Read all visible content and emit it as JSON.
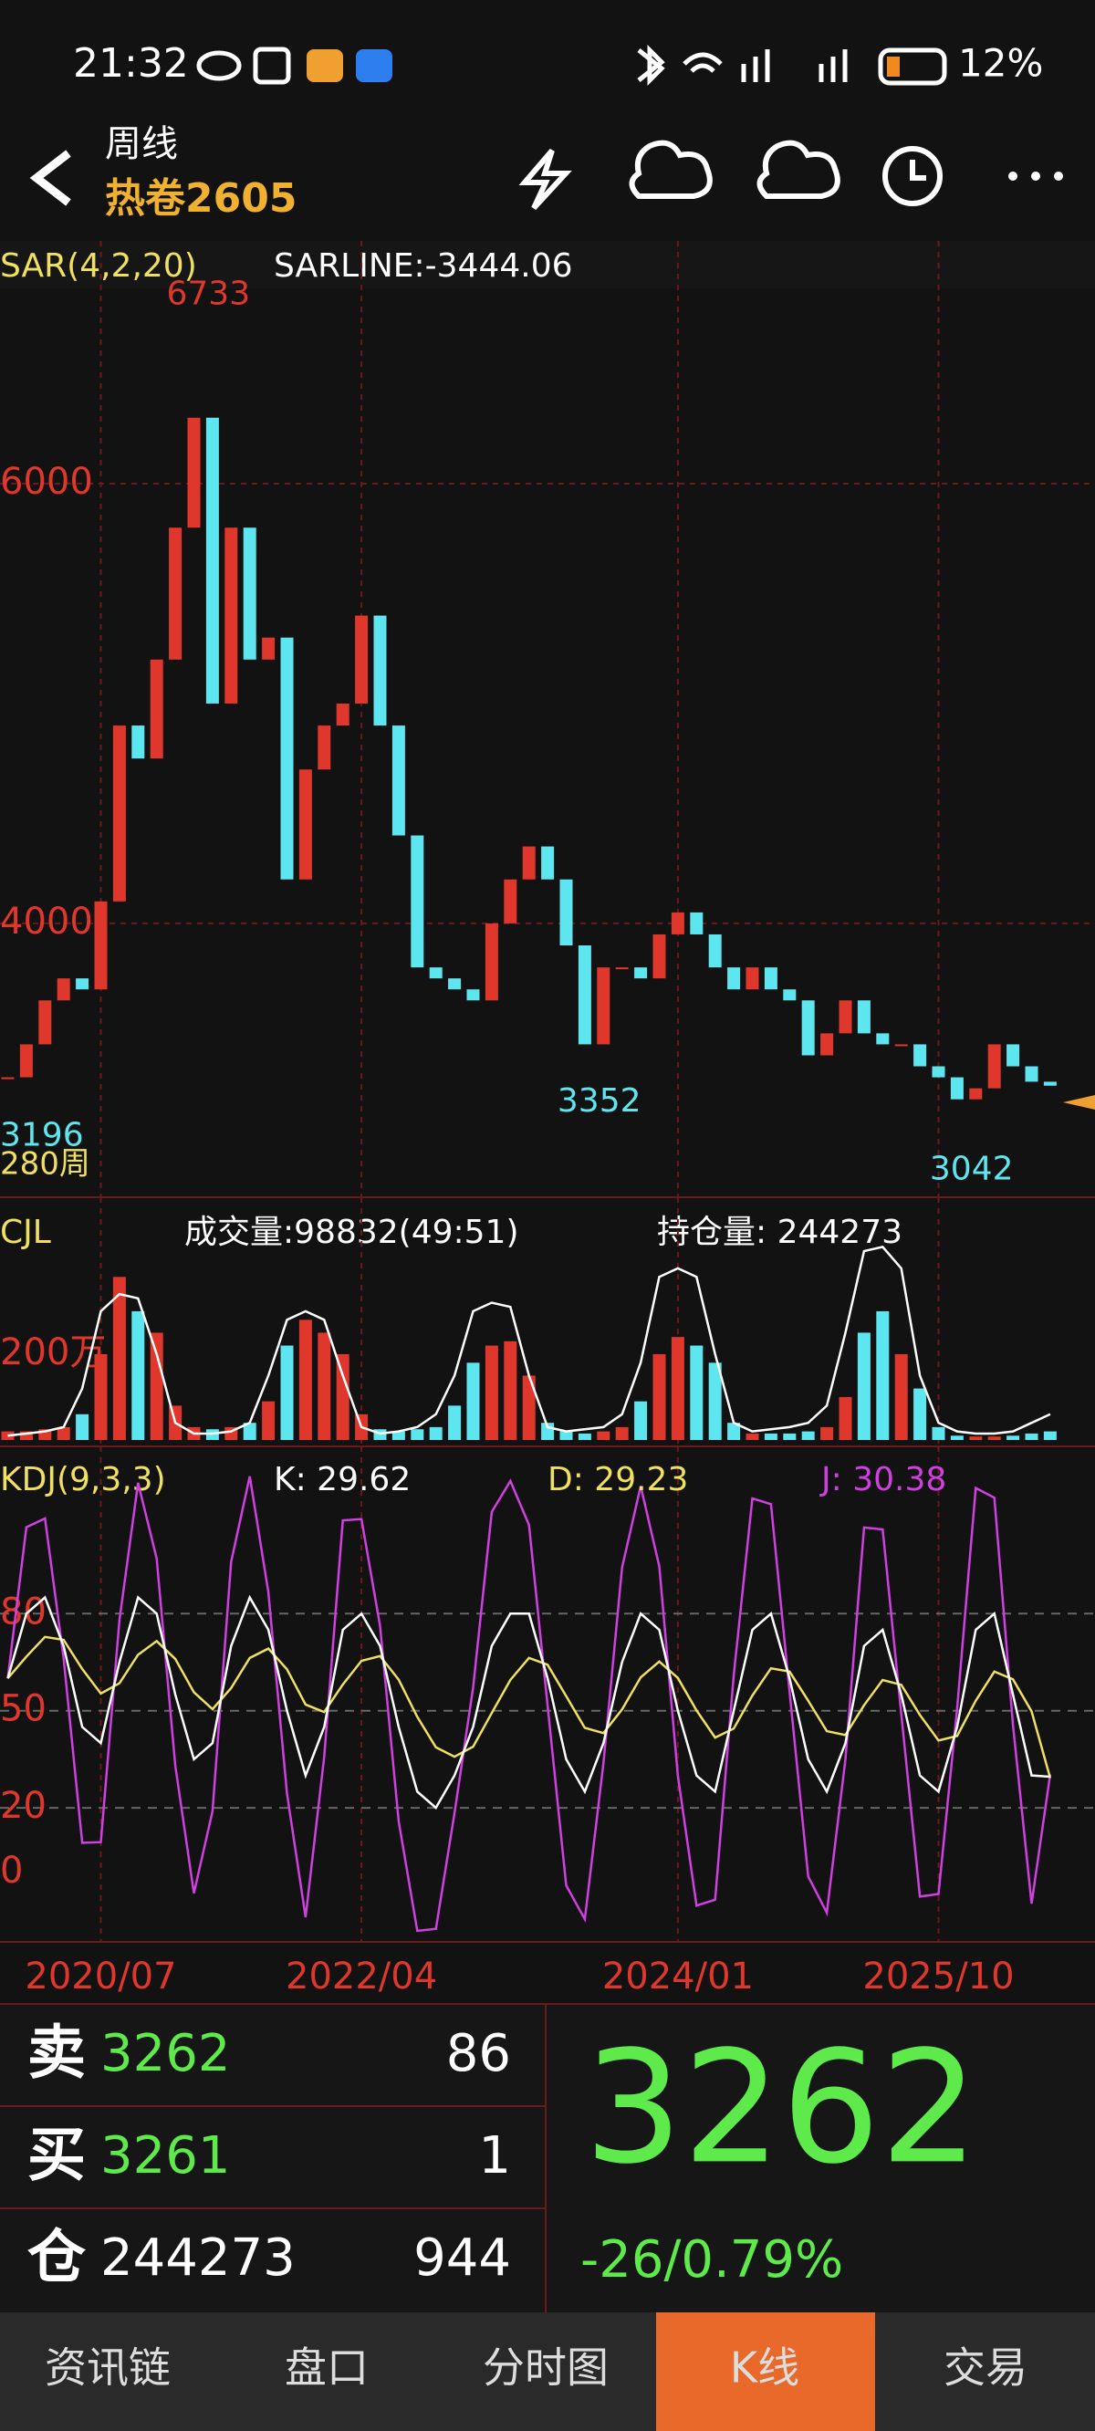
{
  "status_bar": {
    "time": "21:32",
    "battery": "12%"
  },
  "header": {
    "period": "周线",
    "symbol": "热卷2605"
  },
  "chart_data": {
    "type": "candlestick",
    "indicator_label": "SAR(4,2,20)",
    "sarline_label": "SARLINE:-3444.06",
    "period_count": "280周",
    "categories": [
      null,
      null,
      null,
      null,
      null,
      "2020/07",
      null,
      null,
      null,
      null,
      null,
      null,
      null,
      null,
      null,
      null,
      null,
      null,
      null,
      "2022/04",
      null,
      null,
      null,
      null,
      null,
      null,
      null,
      null,
      null,
      null,
      null,
      null,
      null,
      null,
      null,
      null,
      "2024/01",
      null,
      null,
      null,
      null,
      null,
      null,
      null,
      null,
      null,
      null,
      null,
      null,
      null,
      "2025/10",
      null,
      null,
      null,
      null,
      null,
      null
    ],
    "close": [
      3300,
      3450,
      3650,
      3750,
      3700,
      4100,
      4900,
      4750,
      5200,
      5800,
      6300,
      5000,
      5800,
      5200,
      5300,
      4200,
      4700,
      4900,
      5000,
      5400,
      4900,
      4400,
      3800,
      3750,
      3700,
      3650,
      4000,
      4200,
      4350,
      4200,
      3900,
      3450,
      3800,
      3800,
      3750,
      3950,
      4050,
      3950,
      3800,
      3700,
      3800,
      3700,
      3650,
      3400,
      3500,
      3650,
      3500,
      3450,
      3450,
      3350,
      3300,
      3200,
      3250,
      3450,
      3350,
      3280,
      3262
    ],
    "ylim": [
      2850,
      7100
    ],
    "yticks": [
      4000,
      6000
    ],
    "annotations": [
      {
        "value": 6733,
        "index": 10,
        "color": "#e0372c"
      },
      {
        "value": 3196,
        "index": 0,
        "color": "#5ee6f0"
      },
      {
        "value": 3352,
        "index": 31,
        "color": "#5ee6f0"
      },
      {
        "value": 3042,
        "index": 51,
        "color": "#5ee6f0"
      }
    ],
    "colors": {
      "up": "#e0372c",
      "down": "#5ee6f0"
    }
  },
  "volume_chart": {
    "type": "bar",
    "label": "CJL",
    "volume_label": "成交量:98832(49:51)",
    "oi_label": "持仓量: 244273",
    "values": [
      20,
      20,
      25,
      30,
      60,
      200,
      380,
      300,
      250,
      80,
      30,
      25,
      30,
      40,
      90,
      220,
      280,
      250,
      200,
      60,
      25,
      20,
      25,
      30,
      80,
      180,
      220,
      230,
      150,
      40,
      20,
      15,
      20,
      30,
      90,
      200,
      240,
      220,
      180,
      40,
      15,
      15,
      15,
      20,
      30,
      100,
      250,
      300,
      200,
      120,
      30,
      10,
      8,
      8,
      10,
      15,
      20
    ],
    "open_interest": [
      10,
      15,
      20,
      30,
      120,
      300,
      340,
      330,
      200,
      40,
      15,
      15,
      20,
      40,
      150,
      280,
      300,
      280,
      150,
      30,
      15,
      20,
      30,
      60,
      150,
      300,
      320,
      310,
      150,
      30,
      20,
      25,
      30,
      60,
      180,
      380,
      400,
      380,
      200,
      40,
      20,
      25,
      30,
      40,
      80,
      250,
      440,
      450,
      400,
      150,
      40,
      20,
      15,
      15,
      20,
      40,
      60
    ],
    "ylim": [
      0,
      555
    ],
    "yticks": [
      {
        "value": 200,
        "label": "200万"
      }
    ]
  },
  "kdj_chart": {
    "type": "line",
    "label": "KDJ(9,3,3)",
    "ylim": [
      -20,
      128
    ],
    "yticks": [
      0,
      20,
      50,
      80
    ],
    "series": [
      {
        "label": "K: 29.62",
        "color": "#ffffff",
        "values": [
          60,
          80,
          85,
          70,
          45,
          40,
          65,
          85,
          80,
          55,
          35,
          40,
          70,
          85,
          75,
          50,
          30,
          45,
          75,
          80,
          70,
          45,
          25,
          20,
          30,
          45,
          70,
          80,
          80,
          60,
          35,
          25,
          40,
          65,
          80,
          75,
          50,
          30,
          25,
          50,
          75,
          80,
          60,
          35,
          25,
          40,
          70,
          75,
          55,
          30,
          25,
          45,
          75,
          80,
          55,
          30,
          29.62
        ]
      },
      {
        "label": "D: 29.23",
        "color": "#f0e060",
        "values": [
          60,
          66.7,
          72.8,
          71.9,
          62.9,
          55.3,
          58.5,
          67.3,
          71.5,
          66,
          55.7,
          50.5,
          57,
          66.3,
          69.2,
          62.8,
          51.9,
          49.6,
          58.1,
          65.4,
          66.9,
          59.6,
          48.1,
          38.7,
          35.8,
          38.9,
          49.3,
          59.5,
          66.3,
          64.2,
          54.5,
          44.7,
          43.1,
          50.4,
          60.3,
          65.2,
          60.1,
          50.1,
          41.7,
          44.5,
          54.7,
          63.1,
          62.1,
          53.1,
          43.7,
          42.5,
          51.7,
          59.5,
          58,
          48.7,
          40.8,
          42.2,
          53.1,
          62.1,
          59.7,
          49.8,
          29.23
        ]
      },
      {
        "label": "J: 30.38",
        "color": "#d040e0",
        "values": [
          60,
          106.7,
          109.4,
          66.2,
          9.2,
          9.4,
          78,
          120.4,
          97,
          33,
          -6.4,
          19,
          96,
          122.4,
          86.6,
          24.4,
          -13.8,
          35.8,
          108.8,
          109.2,
          76.2,
          15.8,
          -18,
          -17.4,
          18.4,
          57.2,
          111.4,
          121,
          107.4,
          51.6,
          -4,
          -14.4,
          33.8,
          94.2,
          119.4,
          94.6,
          29.8,
          -10.2,
          -8.4,
          61,
          115.6,
          113.8,
          55.8,
          -1.2,
          -12.4,
          35,
          106.6,
          106,
          49,
          -7.4,
          -6.6,
          50.6,
          118.8,
          115.8,
          45.6,
          -9.6,
          30.38
        ]
      }
    ]
  },
  "quote": {
    "rows": [
      {
        "label": "卖",
        "price": "3262",
        "qty": "86"
      },
      {
        "label": "买",
        "price": "3261",
        "qty": "1"
      },
      {
        "label": "仓",
        "price": "244273",
        "qty": "944"
      }
    ],
    "last": "3262",
    "change": "-26/0.79%"
  },
  "tabs": [
    "资讯链",
    "盘口",
    "分时图",
    "K线",
    "交易"
  ]
}
